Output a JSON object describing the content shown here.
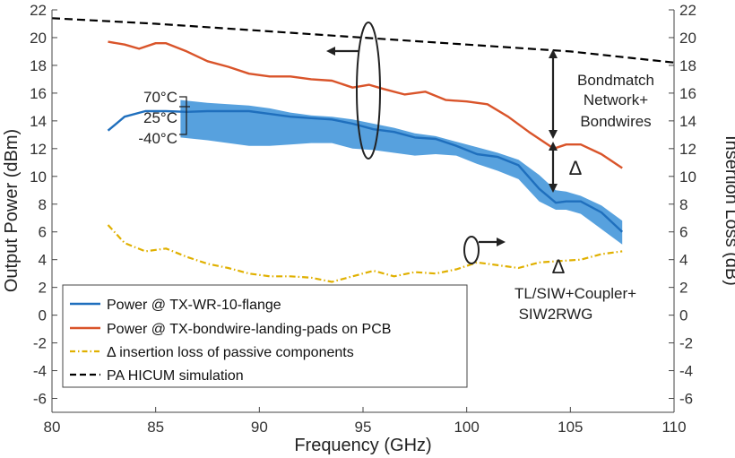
{
  "chart_data": {
    "type": "line",
    "xlabel": "Frequency (GHz)",
    "ylabel_left": "Output Power (dBm)",
    "ylabel_right": "Insertion Loss (dB)",
    "xlim": [
      80,
      110
    ],
    "ylim": [
      -7,
      22
    ],
    "x_ticks": [
      "80",
      "85",
      "90",
      "95",
      "100",
      "105",
      "110"
    ],
    "y_ticks_left": [
      "-6",
      "-4",
      "-2",
      "0",
      "2",
      "4",
      "6",
      "8",
      "10",
      "12",
      "14",
      "16",
      "18",
      "20",
      "22"
    ],
    "y_ticks_right": [
      "-6",
      "-4",
      "-2",
      "0",
      "2",
      "4",
      "6",
      "8",
      "10",
      "12",
      "14",
      "16",
      "18",
      "20",
      "22"
    ],
    "series": [
      {
        "name": "Power @ TX-WR-10-flange",
        "color": "#1f6fbd",
        "style": "solid",
        "x": [
          82.7,
          83.5,
          84.5,
          85.5,
          86.5,
          87.5,
          88.5,
          89.5,
          90.5,
          91.5,
          92.5,
          93.5,
          94.5,
          95.5,
          96.5,
          97.5,
          98.5,
          99.5,
          100.5,
          101.5,
          102.5,
          103.5,
          104.3,
          104.8,
          105.5,
          106.5,
          107.5
        ],
        "values": [
          13.3,
          14.3,
          14.7,
          14.7,
          14.65,
          14.7,
          14.7,
          14.7,
          14.5,
          14.3,
          14.2,
          14.1,
          13.8,
          13.4,
          13.2,
          12.8,
          12.7,
          12.2,
          11.6,
          11.4,
          10.8,
          9.1,
          8.1,
          8.2,
          8.2,
          7.4,
          6.0
        ]
      },
      {
        "name": "Power @ TX-bondwire-landing-pads on PCB",
        "color": "#d9542a",
        "style": "solid",
        "x": [
          82.7,
          83.5,
          84.2,
          85.0,
          85.5,
          86.5,
          87.5,
          88.5,
          89.5,
          90.5,
          91.5,
          92.5,
          93.5,
          94.5,
          95.3,
          96.0,
          97.0,
          98.0,
          99.0,
          100.0,
          101.0,
          102.0,
          103.0,
          104.2,
          104.8,
          105.5,
          106.5,
          107.5
        ],
        "values": [
          19.7,
          19.5,
          19.2,
          19.6,
          19.6,
          19.0,
          18.3,
          17.9,
          17.4,
          17.2,
          17.2,
          17.0,
          16.9,
          16.4,
          16.6,
          16.3,
          15.9,
          16.1,
          15.5,
          15.4,
          15.2,
          14.3,
          13.2,
          12.0,
          12.3,
          12.3,
          11.6,
          10.6
        ]
      },
      {
        "name": "Δ insertion loss of passive components",
        "color": "#e0b000",
        "style": "dashdot",
        "x": [
          82.7,
          83.5,
          84.5,
          85.5,
          86.5,
          87.5,
          88.5,
          89.5,
          90.5,
          91.5,
          92.5,
          93.5,
          94.5,
          95.5,
          96.5,
          97.5,
          98.5,
          99.5,
          100.5,
          101.5,
          102.5,
          103.5,
          104.5,
          105.5,
          106.5,
          107.5
        ],
        "values": [
          6.5,
          5.2,
          4.6,
          4.8,
          4.2,
          3.7,
          3.4,
          3.0,
          2.8,
          2.8,
          2.7,
          2.4,
          2.8,
          3.2,
          2.8,
          3.1,
          3.0,
          3.3,
          3.8,
          3.6,
          3.4,
          3.8,
          3.9,
          4.0,
          4.4,
          4.6
        ]
      },
      {
        "name": "PA HICUM simulation",
        "color": "#000000",
        "style": "dashed",
        "x": [
          80,
          85,
          90,
          95,
          100,
          105,
          110
        ],
        "values": [
          21.4,
          21.0,
          20.5,
          20.0,
          19.5,
          19.0,
          18.2
        ]
      }
    ],
    "temperature_band": {
      "color": "#3a90d8",
      "x": [
        86.2,
        87.5,
        88.5,
        89.5,
        90.5,
        91.5,
        92.5,
        93.5,
        94.5,
        95.5,
        96.5,
        97.5,
        98.5,
        99.5,
        100.5,
        101.5,
        102.5,
        103.5,
        104.3,
        104.8,
        105.5,
        106.5,
        107.5
      ],
      "upper": [
        15.5,
        15.3,
        15.2,
        15.1,
        14.9,
        14.6,
        14.4,
        14.3,
        14.1,
        13.8,
        13.5,
        13.1,
        12.9,
        12.5,
        12.1,
        11.7,
        11.2,
        10.1,
        9.0,
        8.9,
        8.6,
        7.9,
        6.8
      ],
      "lower": [
        12.8,
        12.6,
        12.4,
        12.2,
        12.2,
        12.3,
        12.4,
        12.4,
        12.0,
        11.9,
        11.7,
        11.5,
        11.6,
        11.5,
        10.9,
        10.4,
        9.8,
        8.2,
        7.6,
        7.6,
        7.3,
        6.2,
        5.1
      ]
    },
    "temperature_labels": [
      {
        "text": "70°C",
        "y": 15.5
      },
      {
        "text": "25°C",
        "y": 14.0
      },
      {
        "text": "-40°C",
        "y": 12.6
      }
    ],
    "annotations": {
      "bondmatch": [
        "Bondmatch",
        "Network+",
        "Bondwires"
      ],
      "delta_upper": "Δ",
      "delta_lower": "Δ",
      "passive": [
        "TL/SIW+Coupler+",
        "SIW2RWG"
      ]
    },
    "legend_position": "bottom-left",
    "grid": false
  }
}
